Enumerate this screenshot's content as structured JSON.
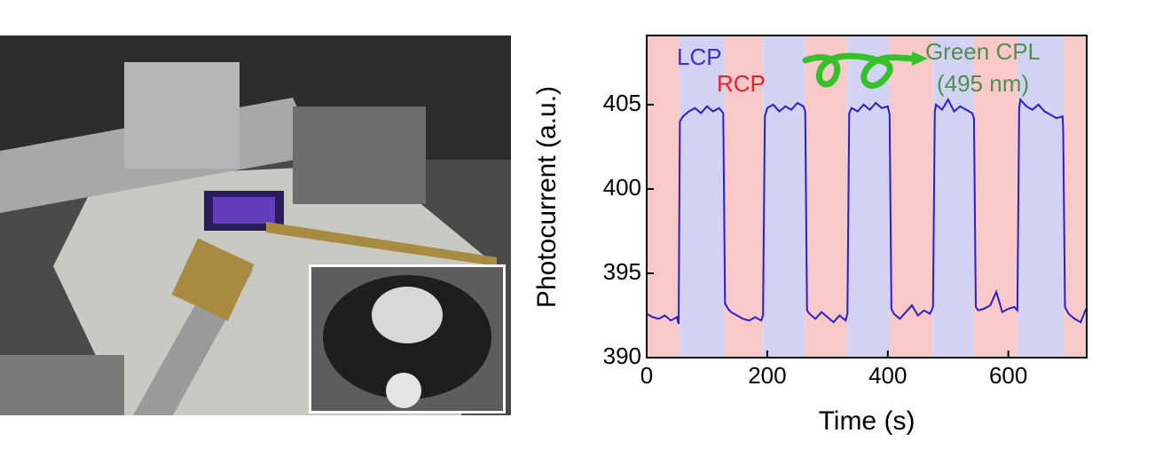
{
  "chart_data": {
    "type": "line",
    "x_label": "Time (s)",
    "y_label": "Photocurrent (a.u.)",
    "xlim": [
      0,
      730
    ],
    "ylim": [
      390,
      409.1
    ],
    "xticks": [
      0,
      200,
      400,
      600
    ],
    "yticks": [
      390,
      395,
      400,
      405
    ],
    "annotations": [
      {
        "text": "LCP",
        "color": "#3a2fd6"
      },
      {
        "text": "RCP",
        "color": "#e8202a"
      },
      {
        "text": "Green CPL",
        "color": "#4f8f4f"
      },
      {
        "text": "(495 nm)",
        "color": "#4f8f4f"
      }
    ],
    "regions": [
      {
        "x0": 0,
        "x1": 53,
        "color": "#f9c9c9"
      },
      {
        "x0": 53,
        "x1": 129,
        "color": "#d2d2f2"
      },
      {
        "x0": 129,
        "x1": 193,
        "color": "#f9c9c9"
      },
      {
        "x0": 193,
        "x1": 263,
        "color": "#d2d2f2"
      },
      {
        "x0": 263,
        "x1": 332,
        "color": "#f9c9c9"
      },
      {
        "x0": 332,
        "x1": 403,
        "color": "#d2d2f2"
      },
      {
        "x0": 403,
        "x1": 475,
        "color": "#f9c9c9"
      },
      {
        "x0": 475,
        "x1": 543,
        "color": "#d2d2f2"
      },
      {
        "x0": 543,
        "x1": 615,
        "color": "#f9c9c9"
      },
      {
        "x0": 615,
        "x1": 691,
        "color": "#d2d2f2"
      },
      {
        "x0": 691,
        "x1": 730,
        "color": "#f9c9c9"
      }
    ],
    "series": [
      {
        "color": "#2a1fd0",
        "x": [
          0,
          10,
          20,
          30,
          40,
          50,
          53,
          55,
          60,
          70,
          80,
          90,
          100,
          110,
          120,
          127,
          130,
          135,
          140,
          150,
          160,
          170,
          180,
          190,
          193,
          196,
          200,
          210,
          220,
          230,
          240,
          250,
          260,
          263,
          266,
          270,
          280,
          290,
          300,
          310,
          320,
          330,
          333,
          336,
          340,
          350,
          360,
          370,
          380,
          390,
          400,
          403,
          406,
          410,
          420,
          430,
          440,
          450,
          460,
          470,
          475,
          478,
          480,
          490,
          500,
          510,
          520,
          530,
          540,
          543,
          546,
          550,
          560,
          570,
          580,
          590,
          600,
          610,
          615,
          618,
          620,
          630,
          640,
          650,
          660,
          670,
          680,
          690,
          691,
          694,
          700,
          710,
          720,
          729
        ],
        "values": [
          392.6,
          392.4,
          392.3,
          392.5,
          392.2,
          392.4,
          392.0,
          404.0,
          404.3,
          404.6,
          404.8,
          404.5,
          404.9,
          404.6,
          404.8,
          404.5,
          393.2,
          392.9,
          392.7,
          392.5,
          392.3,
          392.2,
          392.4,
          392.2,
          392.5,
          404.3,
          404.8,
          405.0,
          404.6,
          404.9,
          404.7,
          405.1,
          404.9,
          404.6,
          392.8,
          392.6,
          392.3,
          392.7,
          392.4,
          392.1,
          392.5,
          392.2,
          392.6,
          404.5,
          404.8,
          404.6,
          405.0,
          404.7,
          405.1,
          404.8,
          404.9,
          404.4,
          392.9,
          392.6,
          392.3,
          392.7,
          393.1,
          392.5,
          392.8,
          392.6,
          393.0,
          404.6,
          405.0,
          404.7,
          405.3,
          404.6,
          404.9,
          404.7,
          404.5,
          404.2,
          393.0,
          392.8,
          392.9,
          393.1,
          393.9,
          392.7,
          392.9,
          393.0,
          392.8,
          404.8,
          405.3,
          404.9,
          404.7,
          405.0,
          404.6,
          404.4,
          404.2,
          404.3,
          403.5,
          393.0,
          392.6,
          392.3,
          392.1,
          392.9
        ]
      }
    ]
  }
}
